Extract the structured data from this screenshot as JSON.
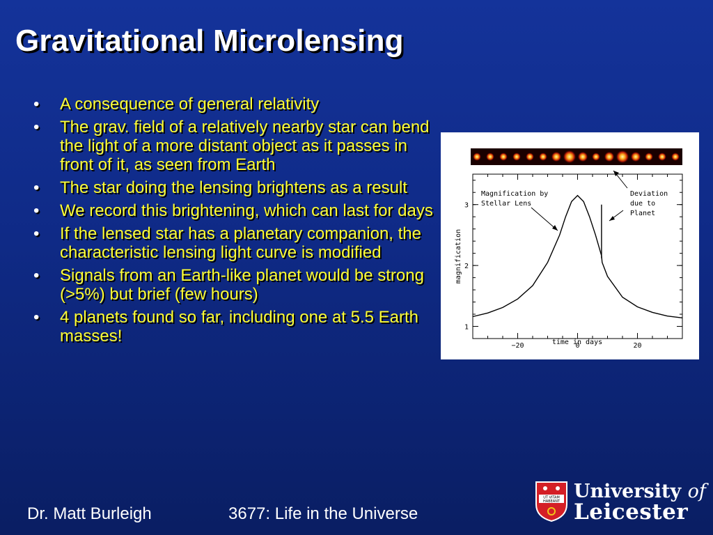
{
  "slide": {
    "title": "Gravitational Microlensing",
    "bullets": [
      "A consequence of general relativity",
      "The grav. field of a relatively nearby star can bend the light of a more distant object as it passes in front of it, as seen from Earth",
      "The star doing the lensing brightens as a result",
      "We record this brightening, which can last for days",
      "If the lensed star has a planetary companion, the characteristic lensing light curve is modified",
      "Signals from an Earth-like planet would be strong (>5%) but brief (few hours)",
      " 4 planets found so far, including one at 5.5 Earth masses!"
    ],
    "bullet_symbol": "•"
  },
  "figure": {
    "annotation_left": [
      "Magnification by",
      "Stellar Lens"
    ],
    "annotation_right": [
      "Deviation",
      "due to",
      "Planet"
    ],
    "xlabel": "time in days",
    "ylabel": "magnification",
    "x_ticks": [
      "−20",
      "0",
      "20"
    ],
    "y_ticks": [
      "1",
      "2",
      "3"
    ]
  },
  "footer": {
    "author": "Dr. Matt Burleigh",
    "course": "3677: Life in the Universe"
  },
  "logo": {
    "line1_main": "University",
    "line1_of": "of",
    "line2": "Leicester",
    "crest_motto_1": "UT VITAM",
    "crest_motto_2": "HABEANT"
  },
  "chart_data": {
    "type": "line",
    "title": "",
    "xlabel": "time in days",
    "ylabel": "magnification",
    "xlim": [
      -35,
      35
    ],
    "ylim": [
      0.8,
      3.5
    ],
    "series": [
      {
        "x": [
          -35,
          -30,
          -25,
          -20,
          -15,
          -10,
          -6,
          -4,
          -2,
          0,
          2,
          4,
          6,
          8,
          8.2,
          10,
          15,
          20,
          25,
          30,
          35
        ],
        "values": [
          1.16,
          1.22,
          1.31,
          1.45,
          1.67,
          2.05,
          2.5,
          2.8,
          3.05,
          3.15,
          3.05,
          2.8,
          2.5,
          2.16,
          2.05,
          1.82,
          1.48,
          1.32,
          1.23,
          1.17,
          1.14
        ]
      }
    ],
    "planet_spike": {
      "x": 8,
      "peak": 3.0
    }
  }
}
